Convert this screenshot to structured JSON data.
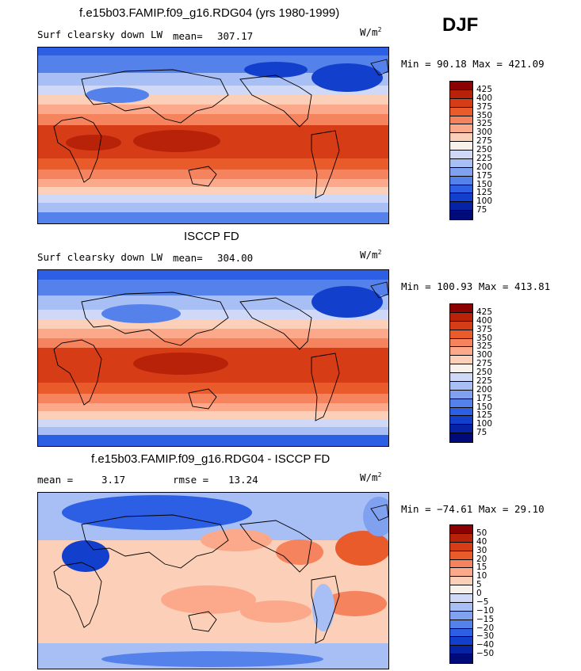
{
  "season": "DJF",
  "panels": [
    {
      "title": "f.e15b03.FAMIP.f09_g16.RDG04 (yrs 1980-1999)",
      "left_label": "Surf clearsky down LW",
      "stat_label": "mean=",
      "stat_value": "307.17",
      "units_main": "W/m",
      "units_sup": "2",
      "minmax": "Min =  90.18 Max = 421.09",
      "colors": [
        "#8b0000",
        "#b82209",
        "#d63c16",
        "#ea5b2c",
        "#f5835d",
        "#fba98a",
        "#fcd0b8",
        "#f8f0eb",
        "#cfd9f7",
        "#a8bff5",
        "#7fa1f0",
        "#5582ea",
        "#2c5fe3",
        "#1240cc",
        "#0623a6",
        "#000a7a"
      ],
      "ticks": [
        "425",
        "400",
        "375",
        "350",
        "325",
        "300",
        "275",
        "250",
        "225",
        "200",
        "175",
        "150",
        "125",
        "100",
        "75"
      ]
    },
    {
      "title": "ISCCP FD",
      "left_label": "Surf clearsky down LW",
      "stat_label": "mean=",
      "stat_value": "304.00",
      "units_main": "W/m",
      "units_sup": "2",
      "minmax": "Min = 100.93 Max = 413.81",
      "colors": [
        "#8b0000",
        "#b82209",
        "#d63c16",
        "#ea5b2c",
        "#f5835d",
        "#fba98a",
        "#fcd0b8",
        "#f8f0eb",
        "#cfd9f7",
        "#a8bff5",
        "#7fa1f0",
        "#5582ea",
        "#2c5fe3",
        "#1240cc",
        "#0623a6",
        "#000a7a"
      ],
      "ticks": [
        "425",
        "400",
        "375",
        "350",
        "325",
        "300",
        "275",
        "250",
        "225",
        "200",
        "175",
        "150",
        "125",
        "100",
        "75"
      ]
    },
    {
      "title": "f.e15b03.FAMIP.f09_g16.RDG04 - ISCCP FD",
      "left_label": "mean =",
      "left_value": "3.17",
      "stat_label": "rmse =",
      "stat_value": "13.24",
      "units_main": "W/m",
      "units_sup": "2",
      "minmax": "Min = −74.61 Max =  29.10",
      "colors": [
        "#8b0000",
        "#b82209",
        "#d63c16",
        "#ea5b2c",
        "#f5835d",
        "#fba98a",
        "#fcd0b8",
        "#f8f0eb",
        "#cfd9f7",
        "#a8bff5",
        "#7fa1f0",
        "#5582ea",
        "#2c5fe3",
        "#1240cc",
        "#0623a6",
        "#000a7a"
      ],
      "ticks": [
        "50",
        "40",
        "30",
        "20",
        "15",
        "10",
        "5",
        "0",
        "−5",
        "−10",
        "−15",
        "−20",
        "−30",
        "−40",
        "−50"
      ]
    }
  ]
}
